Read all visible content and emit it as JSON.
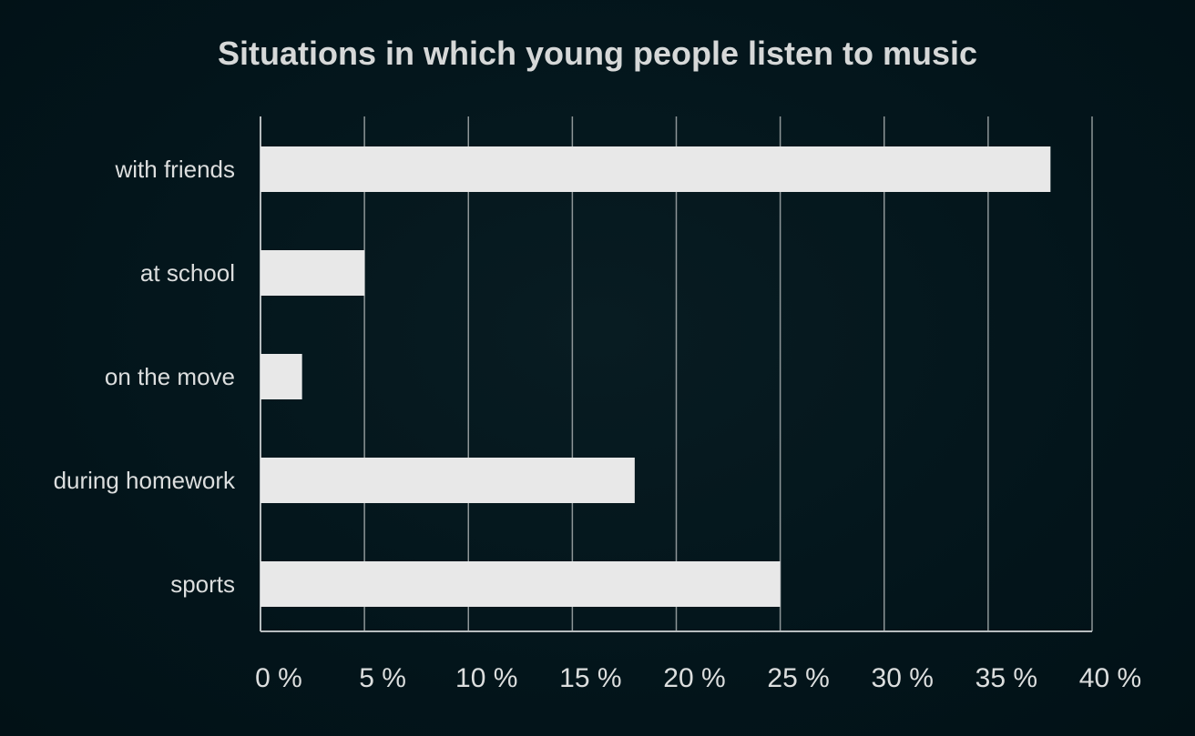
{
  "chart_data": {
    "type": "bar",
    "orientation": "horizontal",
    "title": "Situations in which young people listen to music",
    "categories": [
      "with friends",
      "at school",
      "on the move",
      "during homework",
      "sports"
    ],
    "values": [
      38,
      5,
      2,
      18,
      25
    ],
    "xlim": [
      0,
      40
    ],
    "x_ticks": [
      0,
      5,
      10,
      15,
      20,
      25,
      30,
      35,
      40
    ],
    "x_tick_labels": [
      "0 %",
      "5 %",
      "10 %",
      "15 %",
      "20 %",
      "25 %",
      "30 %",
      "35 %",
      "40 %"
    ],
    "grid": true,
    "legend": "none",
    "colors": {
      "background": "#03151b",
      "bar": "#e8e8e8",
      "text": "#dcdede",
      "grid": "#8e9698"
    }
  }
}
